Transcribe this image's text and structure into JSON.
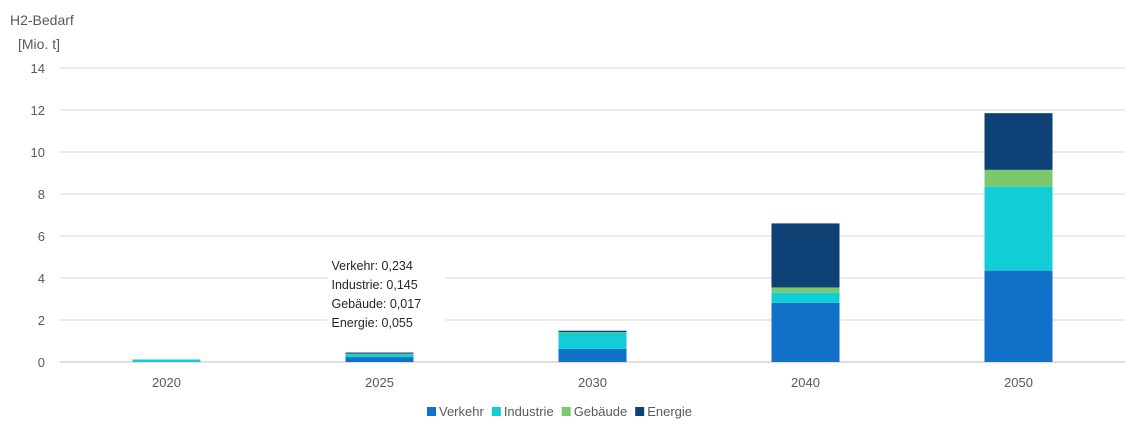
{
  "chart_data": {
    "type": "bar",
    "stacked": true,
    "ylabel_line1": "H2-Bedarf",
    "ylabel_line2": "[Mio. t]",
    "xlabel": "",
    "title": "",
    "categories": [
      "2020",
      "2025",
      "2030",
      "2040",
      "2050"
    ],
    "ylim": [
      0,
      14
    ],
    "yticks": [
      0,
      2,
      4,
      6,
      8,
      10,
      12,
      14
    ],
    "grid": true,
    "legend_position": "bottom",
    "series": [
      {
        "name": "Verkehr",
        "color": "#1170C7",
        "values": [
          0.0,
          0.234,
          0.62,
          2.82,
          4.35
        ]
      },
      {
        "name": "Industrie",
        "color": "#11CDD5",
        "values": [
          0.12,
          0.145,
          0.78,
          0.48,
          4.0
        ]
      },
      {
        "name": "Gebäude",
        "color": "#7DC86B",
        "values": [
          0.0,
          0.017,
          0.02,
          0.25,
          0.8
        ]
      },
      {
        "name": "Energie",
        "color": "#0E4277",
        "values": [
          0.0,
          0.055,
          0.07,
          3.05,
          2.7
        ]
      }
    ],
    "annotation": {
      "category": "2025",
      "lines": [
        "Verkehr: 0,234",
        "Industrie: 0,145",
        "Gebäude: 0,017",
        "Energie: 0,055"
      ]
    }
  }
}
